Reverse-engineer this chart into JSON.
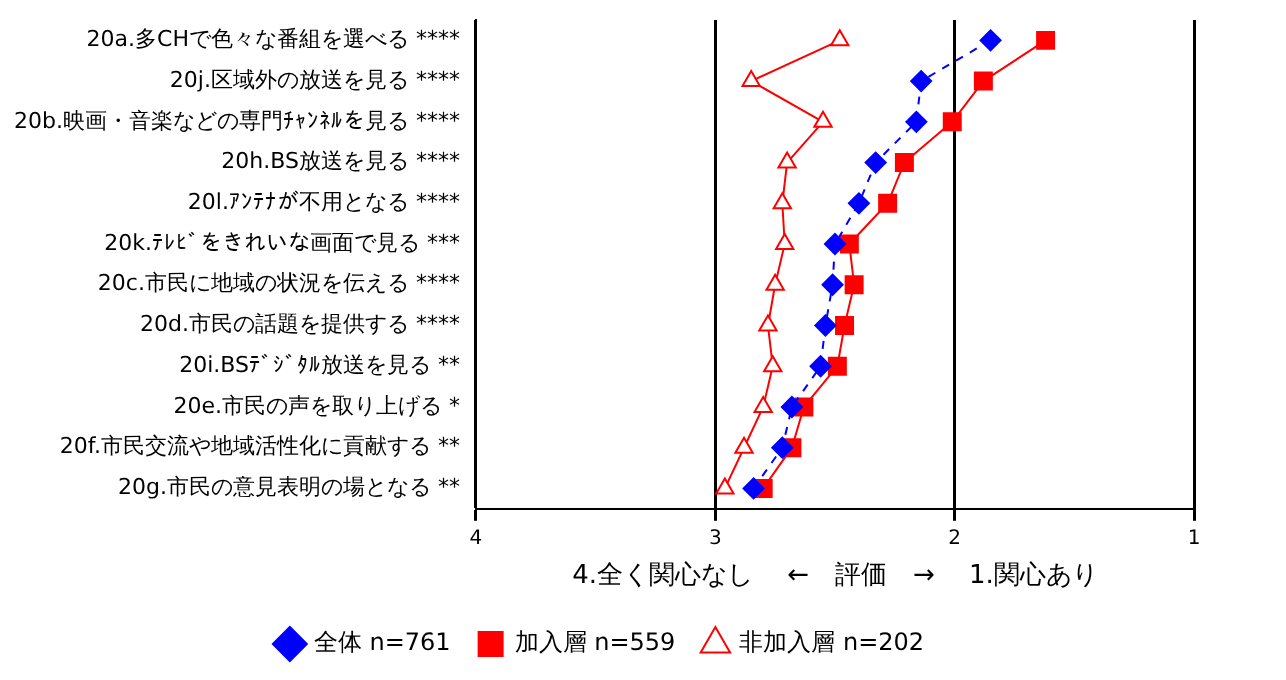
{
  "chart_data": {
    "type": "line",
    "orientation": "horizontal",
    "categories": [
      "20a.多CHで色々な番組を選べる ****",
      "20j.区域外の放送を見る ****",
      "20b.映画・音楽などの専門ﾁｬﾝﾈﾙを見る ****",
      "20h.BS放送を見る ****",
      "20l.ｱﾝﾃﾅが不用となる ****",
      "20k.ﾃﾚﾋﾞをきれいな画面で見る ***",
      "20c.市民に地域の状況を伝える ****",
      "20d.市民の話題を提供する ****",
      "20i.BSﾃﾞｼﾞﾀﾙ放送を見る **",
      "20e.市民の声を取り上げる *",
      "20f.市民交流や地域活性化に貢献する **",
      "20g.市民の意見表明の場となる **"
    ],
    "series": [
      {
        "name": "全体 n=761",
        "color": "#0000ff",
        "marker": "diamond",
        "line_style": "dashed",
        "values": [
          1.85,
          2.14,
          2.16,
          2.33,
          2.4,
          2.5,
          2.51,
          2.54,
          2.56,
          2.68,
          2.72,
          2.84
        ]
      },
      {
        "name": "加入層 n=559",
        "color": "#ff0000",
        "marker": "square",
        "line_style": "solid",
        "values": [
          1.62,
          1.88,
          2.01,
          2.21,
          2.28,
          2.44,
          2.42,
          2.46,
          2.49,
          2.63,
          2.68,
          2.8
        ]
      },
      {
        "name": "非加入層 n=202",
        "color": "#ff0000",
        "marker": "triangle",
        "line_style": "solid",
        "values": [
          2.48,
          2.85,
          2.55,
          2.7,
          2.72,
          2.71,
          2.75,
          2.78,
          2.76,
          2.8,
          2.88,
          2.96
        ]
      }
    ],
    "xlim": [
      4,
      1
    ],
    "xticks": [
      4,
      3,
      2,
      1
    ],
    "xlabel": "4.全く関心なし　 ←　評価　→ 　1.関心あり",
    "grid": "x",
    "legend": "bottom"
  }
}
